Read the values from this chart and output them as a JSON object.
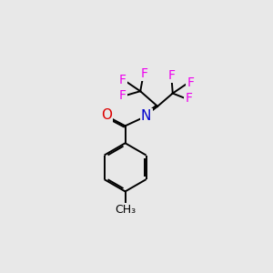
{
  "background_color": "#e8e8e8",
  "atom_colors": {
    "F": "#ee00ee",
    "O": "#dd0000",
    "N": "#0000cc",
    "C": "#000000"
  },
  "bond_color": "#000000",
  "bond_width": 1.4,
  "font_size_F": 10,
  "font_size_ON": 11,
  "font_size_methyl": 9
}
